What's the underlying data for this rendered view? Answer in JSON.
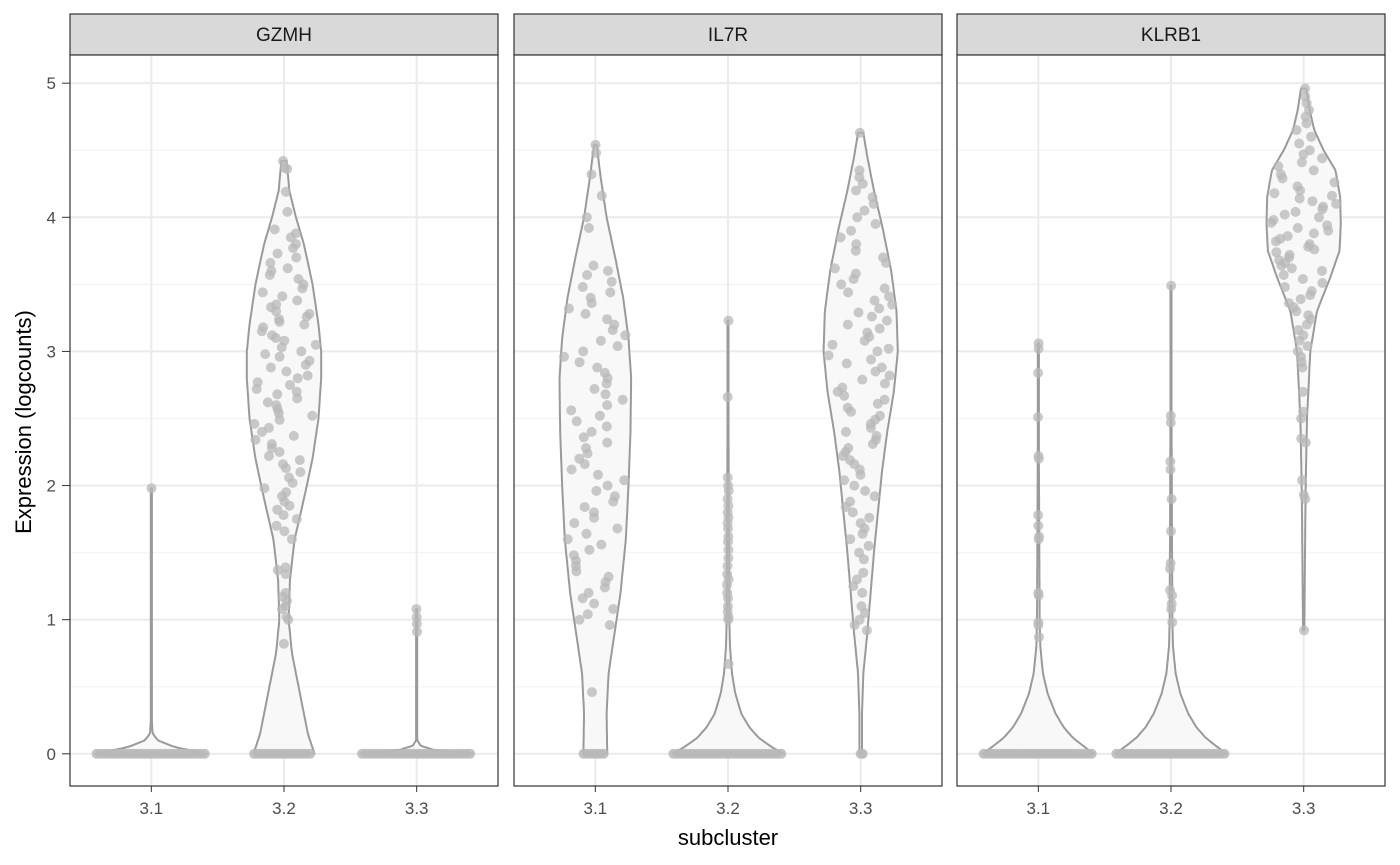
{
  "chart_data": {
    "type": "violin",
    "xlabel": "subcluster",
    "ylabel": "Expression (logcounts)",
    "ylim": [
      -0.24,
      5.21
    ],
    "y_ticks": [
      0,
      1,
      2,
      3,
      4,
      5
    ],
    "categories": [
      "3.1",
      "3.2",
      "3.3"
    ],
    "grid": true,
    "colors": {
      "violin_outline": "#9a9a9a",
      "violin_fill": "#f8f8f8",
      "points": "#b8b8b8",
      "strip_background": "#d9d9d9",
      "panel_border": "#333333",
      "grid_major": "#ebebeb",
      "grid_minor": "#f4f4f4"
    },
    "panels": [
      {
        "gene": "GZMH",
        "groups": [
          {
            "category": "3.1",
            "zero_width": 0.84,
            "min": 0,
            "max": 1.98,
            "profile": [
              [
                0,
                0.84
              ],
              [
                0.05,
                0.35
              ],
              [
                0.1,
                0.1
              ],
              [
                0.15,
                0.02
              ],
              [
                0.3,
                0.0
              ],
              [
                1.98,
                0.0
              ]
            ],
            "values": [
              1.98
            ]
          },
          {
            "category": "3.2",
            "zero_width": 0.46,
            "min": 0,
            "max": 4.42,
            "profile": [
              [
                0,
                0.46
              ],
              [
                0.15,
                0.36
              ],
              [
                0.35,
                0.28
              ],
              [
                0.55,
                0.2
              ],
              [
                0.75,
                0.12
              ],
              [
                1.0,
                0.07
              ],
              [
                1.3,
                0.09
              ],
              [
                1.6,
                0.16
              ],
              [
                1.9,
                0.3
              ],
              [
                2.2,
                0.43
              ],
              [
                2.5,
                0.52
              ],
              [
                2.8,
                0.56
              ],
              [
                3.0,
                0.56
              ],
              [
                3.2,
                0.52
              ],
              [
                3.5,
                0.43
              ],
              [
                3.8,
                0.3
              ],
              [
                4.0,
                0.18
              ],
              [
                4.2,
                0.08
              ],
              [
                4.42,
                0.04
              ]
            ],
            "values": [
              4.42,
              4.37,
              4.36,
              4.19,
              4.04,
              3.91,
              3.88,
              3.85,
              3.8,
              3.77,
              3.73,
              3.7,
              3.66,
              3.62,
              3.6,
              3.57,
              3.54,
              3.5,
              3.47,
              3.44,
              3.41,
              3.38,
              3.35,
              3.33,
              3.3,
              3.28,
              3.26,
              3.24,
              3.22,
              3.2,
              3.18,
              3.15,
              3.12,
              3.1,
              3.08,
              3.05,
              3.03,
              3.0,
              2.98,
              2.96,
              2.93,
              2.9,
              2.88,
              2.85,
              2.82,
              2.8,
              2.77,
              2.75,
              2.72,
              2.7,
              2.68,
              2.65,
              2.62,
              2.6,
              2.57,
              2.54,
              2.52,
              2.49,
              2.46,
              2.43,
              2.4,
              2.37,
              2.34,
              2.31,
              2.28,
              2.25,
              2.22,
              2.19,
              2.16,
              2.13,
              2.1,
              2.06,
              2.02,
              1.98,
              1.95,
              1.92,
              1.88,
              1.85,
              1.82,
              1.78,
              1.75,
              1.7,
              1.66,
              1.6,
              1.39,
              1.37,
              1.34,
              1.2,
              1.17,
              1.14,
              1.1,
              1.08,
              1.02,
              1.0,
              0.82
            ]
          },
          {
            "category": "3.3",
            "zero_width": 0.84,
            "min": 0,
            "max": 1.08,
            "profile": [
              [
                0,
                0.84
              ],
              [
                0.03,
                0.25
              ],
              [
                0.06,
                0.06
              ],
              [
                0.1,
                0.01
              ],
              [
                0.2,
                0.0
              ],
              [
                1.08,
                0.0
              ]
            ],
            "values": [
              1.08,
              1.02,
              0.97,
              0.91
            ]
          }
        ]
      },
      {
        "gene": "IL7R",
        "groups": [
          {
            "category": "3.1",
            "zero_width": 0.18,
            "min": 0,
            "max": 4.54,
            "profile": [
              [
                0,
                0.18
              ],
              [
                0.3,
                0.17
              ],
              [
                0.6,
                0.2
              ],
              [
                0.9,
                0.29
              ],
              [
                1.2,
                0.38
              ],
              [
                1.6,
                0.46
              ],
              [
                2.0,
                0.5
              ],
              [
                2.4,
                0.53
              ],
              [
                2.8,
                0.54
              ],
              [
                3.1,
                0.5
              ],
              [
                3.4,
                0.42
              ],
              [
                3.7,
                0.3
              ],
              [
                4.0,
                0.17
              ],
              [
                4.3,
                0.08
              ],
              [
                4.54,
                0.02
              ]
            ],
            "values": [
              4.54,
              4.48,
              4.32,
              4.16,
              4.0,
              3.92,
              3.64,
              3.6,
              3.57,
              3.52,
              3.48,
              3.44,
              3.4,
              3.36,
              3.32,
              3.28,
              3.24,
              3.2,
              3.16,
              3.12,
              3.08,
              3.04,
              3.0,
              2.96,
              2.92,
              2.88,
              2.84,
              2.8,
              2.76,
              2.72,
              2.68,
              2.64,
              2.6,
              2.56,
              2.52,
              2.48,
              2.44,
              2.4,
              2.36,
              2.32,
              2.28,
              2.24,
              2.2,
              2.16,
              2.12,
              2.08,
              2.04,
              2.0,
              1.96,
              1.92,
              1.88,
              1.84,
              1.8,
              1.76,
              1.72,
              1.68,
              1.64,
              1.6,
              1.56,
              1.52,
              1.48,
              1.44,
              1.4,
              1.36,
              1.32,
              1.28,
              1.24,
              1.2,
              1.16,
              1.12,
              1.08,
              1.04,
              1.0,
              0.96,
              0.46
            ]
          },
          {
            "category": "3.2",
            "zero_width": 0.84,
            "min": 0,
            "max": 3.23,
            "profile": [
              [
                0,
                0.84
              ],
              [
                0.05,
                0.66
              ],
              [
                0.12,
                0.46
              ],
              [
                0.2,
                0.32
              ],
              [
                0.3,
                0.2
              ],
              [
                0.45,
                0.11
              ],
              [
                0.6,
                0.06
              ],
              [
                0.8,
                0.03
              ],
              [
                1.0,
                0.02
              ],
              [
                3.23,
                0.0
              ]
            ],
            "values": [
              3.23,
              2.66,
              2.06,
              2.0,
              1.96,
              1.9,
              1.85,
              1.8,
              1.76,
              1.72,
              1.68,
              1.62,
              1.58,
              1.52,
              1.46,
              1.4,
              1.34,
              1.3,
              1.26,
              1.2,
              1.16,
              1.1,
              1.06,
              1.02,
              1.0,
              0.67
            ]
          },
          {
            "category": "3.3",
            "zero_width": 0.0,
            "min": 0,
            "max": 4.63,
            "profile": [
              [
                0,
                0.02
              ],
              [
                0.3,
                0.02
              ],
              [
                0.6,
                0.04
              ],
              [
                0.9,
                0.1
              ],
              [
                1.2,
                0.15
              ],
              [
                1.5,
                0.2
              ],
              [
                1.8,
                0.26
              ],
              [
                2.1,
                0.32
              ],
              [
                2.4,
                0.4
              ],
              [
                2.7,
                0.5
              ],
              [
                3.0,
                0.56
              ],
              [
                3.3,
                0.54
              ],
              [
                3.6,
                0.46
              ],
              [
                3.9,
                0.34
              ],
              [
                4.2,
                0.2
              ],
              [
                4.45,
                0.1
              ],
              [
                4.63,
                0.04
              ]
            ],
            "values": [
              4.63,
              4.35,
              4.3,
              4.25,
              4.2,
              4.15,
              4.1,
              4.05,
              4.0,
              3.95,
              3.9,
              3.85,
              3.8,
              3.75,
              3.7,
              3.66,
              3.62,
              3.58,
              3.54,
              3.5,
              3.47,
              3.44,
              3.41,
              3.38,
              3.35,
              3.32,
              3.29,
              3.26,
              3.23,
              3.2,
              3.17,
              3.14,
              3.11,
              3.08,
              3.05,
              3.02,
              3.0,
              2.97,
              2.94,
              2.91,
              2.88,
              2.85,
              2.82,
              2.79,
              2.76,
              2.73,
              2.7,
              2.67,
              2.64,
              2.61,
              2.58,
              2.55,
              2.52,
              2.49,
              2.46,
              2.43,
              2.4,
              2.37,
              2.34,
              2.31,
              2.28,
              2.25,
              2.22,
              2.19,
              2.16,
              2.12,
              2.08,
              2.04,
              2.0,
              1.96,
              1.92,
              1.88,
              1.84,
              1.8,
              1.76,
              1.72,
              1.68,
              1.64,
              1.6,
              1.55,
              1.5,
              1.45,
              1.35,
              1.3,
              1.25,
              1.2,
              1.1,
              1.05,
              1.0,
              0.96,
              0.92
            ]
          }
        ]
      },
      {
        "gene": "KLRB1",
        "groups": [
          {
            "category": "3.1",
            "zero_width": 0.84,
            "min": 0,
            "max": 3.06,
            "profile": [
              [
                0,
                0.84
              ],
              [
                0.05,
                0.7
              ],
              [
                0.12,
                0.52
              ],
              [
                0.2,
                0.38
              ],
              [
                0.3,
                0.26
              ],
              [
                0.45,
                0.14
              ],
              [
                0.6,
                0.07
              ],
              [
                0.8,
                0.03
              ],
              [
                1.0,
                0.02
              ],
              [
                3.06,
                0.0
              ]
            ],
            "values": [
              3.06,
              3.02,
              2.84,
              2.51,
              2.22,
              2.2,
              1.78,
              1.7,
              1.62,
              1.6,
              1.2,
              1.18,
              0.98,
              0.96,
              0.87
            ]
          },
          {
            "category": "3.2",
            "zero_width": 0.84,
            "min": 0,
            "max": 3.49,
            "profile": [
              [
                0,
                0.84
              ],
              [
                0.05,
                0.7
              ],
              [
                0.12,
                0.52
              ],
              [
                0.2,
                0.38
              ],
              [
                0.3,
                0.26
              ],
              [
                0.45,
                0.14
              ],
              [
                0.6,
                0.07
              ],
              [
                0.8,
                0.03
              ],
              [
                1.0,
                0.02
              ],
              [
                3.49,
                0.0
              ]
            ],
            "values": [
              3.49,
              2.52,
              2.47,
              2.18,
              2.12,
              1.9,
              1.66,
              1.42,
              1.38,
              1.22,
              1.18,
              1.12,
              1.08,
              0.98
            ]
          },
          {
            "category": "3.3",
            "zero_width": 0.0,
            "min": 0.92,
            "max": 4.96,
            "profile": [
              [
                0.92,
                0.01
              ],
              [
                1.5,
                0.02
              ],
              [
                2.0,
                0.03
              ],
              [
                2.5,
                0.05
              ],
              [
                3.0,
                0.1
              ],
              [
                3.3,
                0.2
              ],
              [
                3.55,
                0.4
              ],
              [
                3.75,
                0.54
              ],
              [
                3.95,
                0.56
              ],
              [
                4.15,
                0.55
              ],
              [
                4.35,
                0.48
              ],
              [
                4.5,
                0.3
              ],
              [
                4.65,
                0.16
              ],
              [
                4.8,
                0.09
              ],
              [
                4.96,
                0.04
              ]
            ],
            "values": [
              4.96,
              4.9,
              4.85,
              4.8,
              4.75,
              4.7,
              4.65,
              4.6,
              4.55,
              4.5,
              4.47,
              4.44,
              4.41,
              4.38,
              4.35,
              4.32,
              4.29,
              4.26,
              4.23,
              4.2,
              4.18,
              4.16,
              4.14,
              4.12,
              4.1,
              4.08,
              4.06,
              4.04,
              4.02,
              4.0,
              3.98,
              3.96,
              3.94,
              3.92,
              3.9,
              3.88,
              3.86,
              3.84,
              3.82,
              3.8,
              3.78,
              3.76,
              3.74,
              3.72,
              3.7,
              3.68,
              3.66,
              3.64,
              3.62,
              3.6,
              3.57,
              3.54,
              3.51,
              3.48,
              3.45,
              3.42,
              3.39,
              3.36,
              3.33,
              3.3,
              3.27,
              3.24,
              3.2,
              3.16,
              3.12,
              3.08,
              3.04,
              3.0,
              2.96,
              2.92,
              2.88,
              2.7,
              2.55,
              2.5,
              2.35,
              2.32,
              2.04,
              1.93,
              1.9,
              0.92
            ]
          }
        ]
      }
    ]
  }
}
